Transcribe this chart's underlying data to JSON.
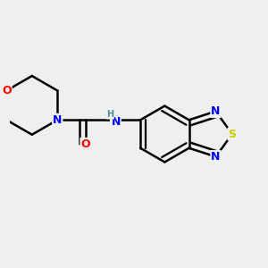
{
  "bg_color": "#efefef",
  "bond_color": "#000000",
  "bond_width": 1.8,
  "atom_colors": {
    "O": "#ff0000",
    "N": "#0000ff",
    "S": "#cccc00",
    "NH": "#4a9090",
    "H": "#4a9090",
    "C": "#000000"
  },
  "layout": {
    "xlim": [
      0.0,
      1.0
    ],
    "ylim": [
      0.15,
      0.85
    ]
  }
}
